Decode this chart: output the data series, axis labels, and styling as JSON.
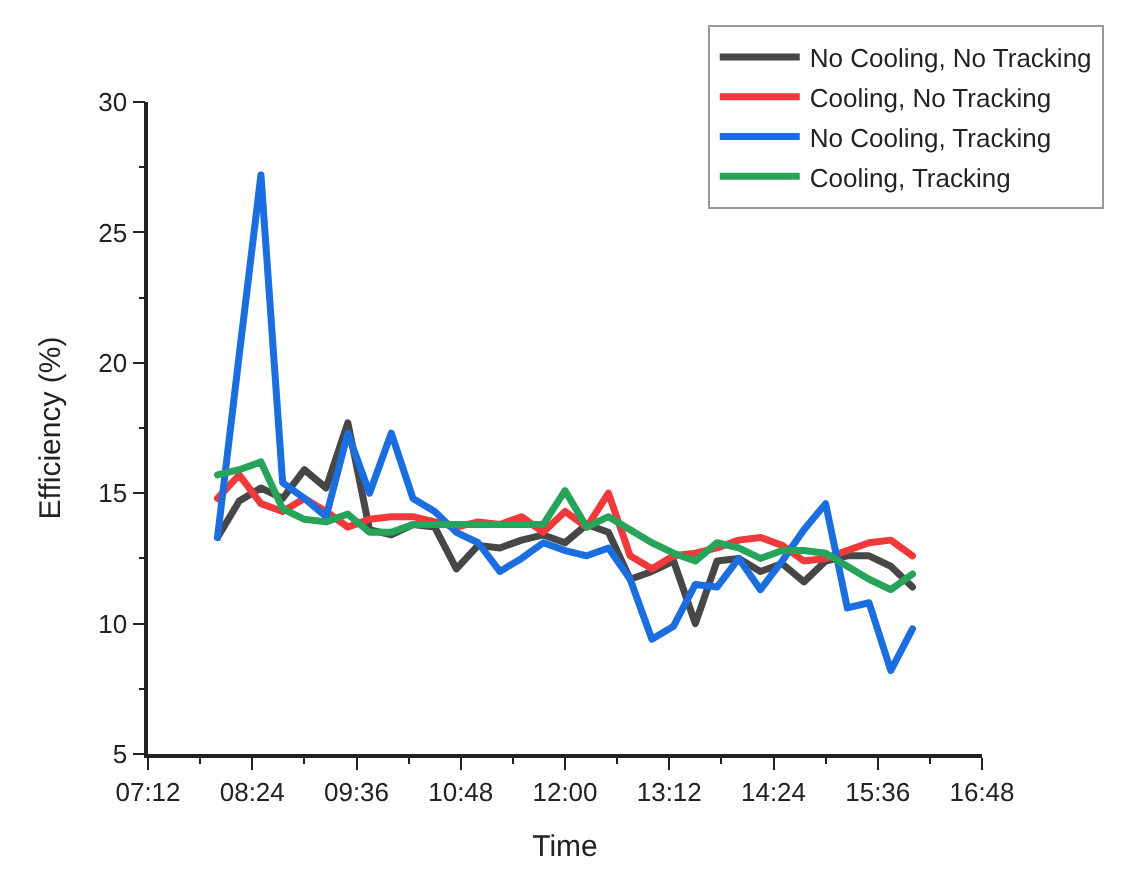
{
  "chart_data": {
    "type": "line",
    "xlabel": "Time",
    "ylabel": "Efficiency (%)",
    "x": [
      8.0,
      8.25,
      8.5,
      8.75,
      9.0,
      9.25,
      9.5,
      9.75,
      10.0,
      10.25,
      10.5,
      10.75,
      11.0,
      11.25,
      11.5,
      11.75,
      12.0,
      12.25,
      12.5,
      12.75,
      13.0,
      13.25,
      13.5,
      13.75,
      14.0,
      14.25,
      14.5,
      14.75,
      15.0,
      15.25,
      15.5,
      15.75,
      16.0
    ],
    "xlim": [
      7.2,
      16.8
    ],
    "xticks": [
      {
        "value": 7.2,
        "label": "07:12"
      },
      {
        "value": 7.8,
        "label": null
      },
      {
        "value": 8.4,
        "label": "08:24"
      },
      {
        "value": 9.0,
        "label": null
      },
      {
        "value": 9.6,
        "label": "09:36"
      },
      {
        "value": 10.2,
        "label": null
      },
      {
        "value": 10.8,
        "label": "10:48"
      },
      {
        "value": 11.4,
        "label": null
      },
      {
        "value": 12.0,
        "label": "12:00"
      },
      {
        "value": 12.6,
        "label": null
      },
      {
        "value": 13.2,
        "label": "13:12"
      },
      {
        "value": 13.8,
        "label": null
      },
      {
        "value": 14.4,
        "label": "14:24"
      },
      {
        "value": 15.0,
        "label": null
      },
      {
        "value": 15.6,
        "label": "15:36"
      },
      {
        "value": 16.2,
        "label": null
      },
      {
        "value": 16.8,
        "label": "16:48"
      }
    ],
    "ylim": [
      5,
      30
    ],
    "yticks": [
      5,
      {
        "value": 7.5,
        "label": null
      },
      10,
      {
        "value": 12.5,
        "label": null
      },
      15,
      {
        "value": 17.5,
        "label": null
      },
      20,
      {
        "value": 22.5,
        "label": null
      },
      25,
      {
        "value": 27.5,
        "label": null
      },
      30
    ],
    "legend": "top right",
    "line_style": "solid",
    "marker": "none",
    "series": [
      {
        "name": "No Cooling, No Tracking",
        "color": "#474747",
        "values": [
          13.3,
          14.7,
          15.2,
          14.8,
          15.9,
          15.2,
          17.7,
          13.6,
          13.4,
          13.8,
          13.7,
          12.1,
          13.0,
          12.9,
          13.2,
          13.4,
          13.1,
          13.8,
          13.5,
          11.7,
          12.0,
          12.4,
          10.0,
          12.4,
          12.5,
          12.0,
          12.3,
          11.6,
          12.4,
          12.6,
          12.6,
          12.2,
          11.4
        ]
      },
      {
        "name": "Cooling, No Tracking",
        "color": "#f0393a",
        "values": [
          14.8,
          15.7,
          14.6,
          14.3,
          14.8,
          14.3,
          13.7,
          14.0,
          14.1,
          14.1,
          13.9,
          13.7,
          13.9,
          13.8,
          14.1,
          13.5,
          14.3,
          13.7,
          15.0,
          12.6,
          12.1,
          12.6,
          12.7,
          12.9,
          13.2,
          13.3,
          13.0,
          12.4,
          12.5,
          12.8,
          13.1,
          13.2,
          12.6
        ]
      },
      {
        "name": "No Cooling, Tracking",
        "color": "#1b6ee0",
        "values": [
          13.3,
          20.3,
          27.2,
          15.4,
          14.8,
          14.1,
          17.3,
          15.0,
          17.3,
          14.8,
          14.3,
          13.5,
          13.1,
          12.0,
          12.5,
          13.1,
          12.8,
          12.6,
          12.9,
          11.7,
          9.4,
          9.9,
          11.5,
          11.4,
          12.5,
          11.3,
          12.4,
          13.6,
          14.6,
          10.6,
          10.8,
          8.2,
          9.8
        ]
      },
      {
        "name": "Cooling, Tracking",
        "color": "#27a35a",
        "values": [
          15.7,
          15.9,
          16.2,
          14.4,
          14.0,
          13.9,
          14.2,
          13.5,
          13.5,
          13.8,
          13.8,
          13.8,
          13.8,
          13.8,
          13.8,
          13.8,
          15.1,
          13.7,
          14.1,
          13.6,
          13.1,
          12.7,
          12.4,
          13.1,
          12.9,
          12.5,
          12.8,
          12.8,
          12.7,
          12.2,
          11.7,
          11.3,
          11.9
        ]
      }
    ]
  }
}
